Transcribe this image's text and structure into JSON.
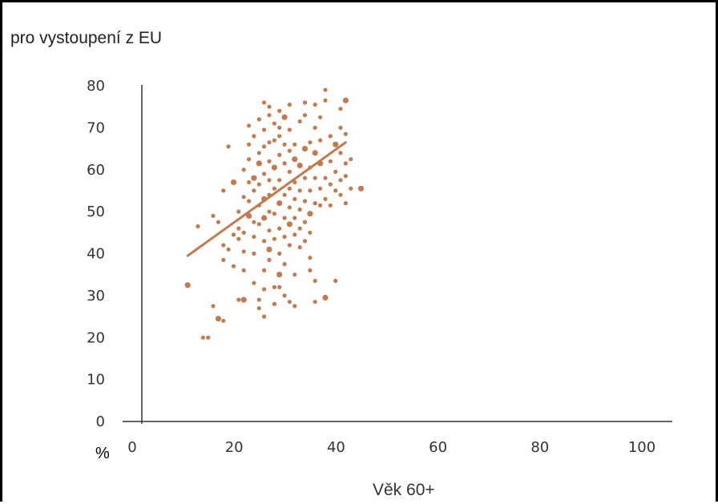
{
  "chart_data": {
    "type": "scatter",
    "title": "pro vystoupení z EU",
    "xlabel": "Věk 60+",
    "ylabel": "%",
    "xlim": [
      0,
      100
    ],
    "ylim": [
      0,
      80
    ],
    "x_ticks": [
      0,
      20,
      40,
      60,
      80,
      100
    ],
    "y_ticks": [
      0,
      10,
      20,
      30,
      40,
      50,
      60,
      70,
      80
    ],
    "grid": false,
    "colors": {
      "points": "#c27a4f",
      "trend": "#c27a4f",
      "axes": "#333333"
    },
    "trendline": {
      "x": [
        9,
        40
      ],
      "y": [
        39.5,
        66.5
      ]
    },
    "points": [
      [
        9,
        32.5
      ],
      [
        11,
        46.5
      ],
      [
        12,
        20
      ],
      [
        13,
        20
      ],
      [
        14,
        27.5
      ],
      [
        14,
        49
      ],
      [
        15,
        47.5
      ],
      [
        15,
        24.5
      ],
      [
        16,
        24
      ],
      [
        16,
        42
      ],
      [
        16,
        38.5
      ],
      [
        16,
        55
      ],
      [
        17,
        41
      ],
      [
        17,
        65.5
      ],
      [
        18,
        57
      ],
      [
        18,
        44.5
      ],
      [
        18,
        37
      ],
      [
        19,
        50
      ],
      [
        19,
        46
      ],
      [
        19,
        43.5
      ],
      [
        19,
        29
      ],
      [
        20,
        29
      ],
      [
        20,
        36
      ],
      [
        20,
        40.5
      ],
      [
        20,
        45
      ],
      [
        20,
        53.5
      ],
      [
        20,
        60
      ],
      [
        21,
        66
      ],
      [
        21,
        49
      ],
      [
        21,
        57
      ],
      [
        21,
        62.5
      ],
      [
        21,
        70.5
      ],
      [
        21,
        52.5
      ],
      [
        22,
        44
      ],
      [
        22,
        40
      ],
      [
        22,
        58
      ],
      [
        22,
        68
      ],
      [
        22,
        55
      ],
      [
        22,
        33
      ],
      [
        22,
        47.5
      ],
      [
        23,
        29
      ],
      [
        23,
        27
      ],
      [
        23,
        61.5
      ],
      [
        23,
        51.5
      ],
      [
        23,
        64
      ],
      [
        23,
        72
      ],
      [
        23,
        47
      ],
      [
        23,
        56.5
      ],
      [
        24,
        76
      ],
      [
        24,
        53
      ],
      [
        24,
        59
      ],
      [
        24,
        65.5
      ],
      [
        24,
        43
      ],
      [
        24,
        36
      ],
      [
        24,
        31.5
      ],
      [
        24,
        25
      ],
      [
        24,
        48.5
      ],
      [
        24,
        69.5
      ],
      [
        25,
        73
      ],
      [
        25,
        62
      ],
      [
        25,
        57.5
      ],
      [
        25,
        50
      ],
      [
        25,
        45.5
      ],
      [
        25,
        41
      ],
      [
        25,
        54
      ],
      [
        25,
        66.5
      ],
      [
        25,
        38.5
      ],
      [
        25,
        75
      ],
      [
        26,
        32
      ],
      [
        26,
        55.5
      ],
      [
        26,
        60.5
      ],
      [
        26,
        67
      ],
      [
        26,
        49.5
      ],
      [
        26,
        43.5
      ],
      [
        26,
        71
      ],
      [
        26,
        28
      ],
      [
        27,
        32
      ],
      [
        27,
        52
      ],
      [
        27,
        63.5
      ],
      [
        27,
        46
      ],
      [
        27,
        57.5
      ],
      [
        27,
        70
      ],
      [
        27,
        74
      ],
      [
        27,
        40
      ],
      [
        27,
        35
      ],
      [
        27,
        68
      ],
      [
        28,
        54
      ],
      [
        28,
        61.5
      ],
      [
        28,
        48.5
      ],
      [
        28,
        44
      ],
      [
        28,
        66
      ],
      [
        28,
        72.5
      ],
      [
        28,
        37.5
      ],
      [
        28,
        30
      ],
      [
        29,
        55.5
      ],
      [
        29,
        51
      ],
      [
        29,
        59.5
      ],
      [
        29,
        64.5
      ],
      [
        29,
        47
      ],
      [
        29,
        42
      ],
      [
        29,
        69.5
      ],
      [
        29,
        75.5
      ],
      [
        29,
        28.5
      ],
      [
        30,
        53
      ],
      [
        30,
        57
      ],
      [
        30,
        62.5
      ],
      [
        30,
        48.5
      ],
      [
        30,
        35
      ],
      [
        30,
        27.5
      ],
      [
        30,
        66
      ],
      [
        30,
        44.5
      ],
      [
        31,
        55
      ],
      [
        31,
        61
      ],
      [
        31,
        50.5
      ],
      [
        31,
        71.5
      ],
      [
        31,
        46
      ],
      [
        31,
        41.5
      ],
      [
        32,
        58
      ],
      [
        32,
        52.5
      ],
      [
        32,
        65
      ],
      [
        32,
        76
      ],
      [
        32,
        47.5
      ],
      [
        32,
        43
      ],
      [
        32,
        73
      ],
      [
        33,
        60.5
      ],
      [
        33,
        55
      ],
      [
        33,
        49.5
      ],
      [
        33,
        39
      ],
      [
        33,
        36
      ],
      [
        33,
        66.5
      ],
      [
        33,
        45
      ],
      [
        34,
        52
      ],
      [
        34,
        58
      ],
      [
        34,
        64
      ],
      [
        34,
        75.5
      ],
      [
        34,
        33.5
      ],
      [
        34,
        28.5
      ],
      [
        34,
        70
      ],
      [
        35,
        55.5
      ],
      [
        35,
        51.5
      ],
      [
        35,
        61.5
      ],
      [
        35,
        67
      ],
      [
        35,
        72.5
      ],
      [
        36,
        79
      ],
      [
        36,
        76.5
      ],
      [
        36,
        58
      ],
      [
        36,
        53
      ],
      [
        36,
        29.5
      ],
      [
        37,
        68
      ],
      [
        37,
        56.5
      ],
      [
        37,
        62
      ],
      [
        37,
        51.5
      ],
      [
        38,
        55
      ],
      [
        38,
        33.5
      ],
      [
        38,
        66
      ],
      [
        38,
        59.5
      ],
      [
        39,
        70
      ],
      [
        39,
        64
      ],
      [
        39,
        74.5
      ],
      [
        39,
        54
      ],
      [
        39,
        57.5
      ],
      [
        40,
        76.5
      ],
      [
        40,
        61.5
      ],
      [
        40,
        68.5
      ],
      [
        40,
        52
      ],
      [
        40,
        58.5
      ],
      [
        41,
        62.5
      ],
      [
        41,
        55.5
      ],
      [
        43,
        55.5
      ]
    ]
  }
}
